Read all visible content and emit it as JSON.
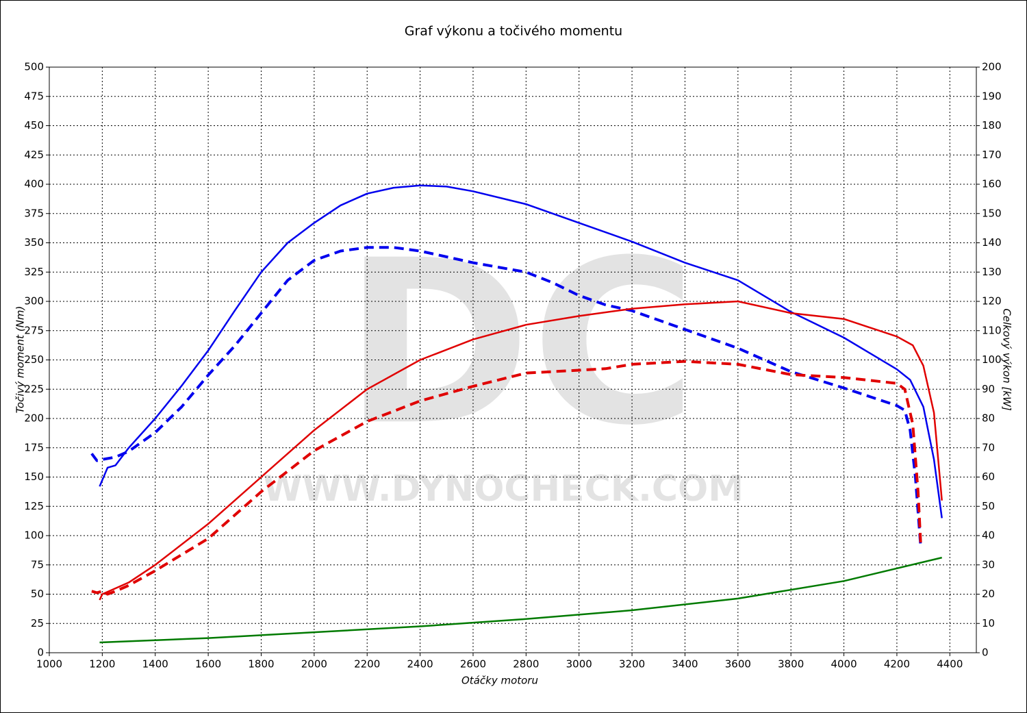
{
  "chart_data": {
    "type": "line",
    "title": "Graf výkonu a točivého momentu",
    "x_label": "Otáčky motoru",
    "y_label": "Točivý moment (Nm)",
    "y2_label": "Celkový výkon [kW]",
    "watermark": [
      "DC",
      "WWW.DYNOCHECK.COM"
    ],
    "xlim": [
      1000,
      4500
    ],
    "xticks": [
      1000,
      1200,
      1400,
      1600,
      1800,
      2000,
      2200,
      2400,
      2600,
      2800,
      3000,
      3200,
      3400,
      3600,
      3800,
      4000,
      4200,
      4400
    ],
    "ylim": [
      0,
      500
    ],
    "yticks": [
      0,
      25,
      50,
      75,
      100,
      125,
      150,
      175,
      200,
      225,
      250,
      275,
      300,
      325,
      350,
      375,
      400,
      425,
      450,
      475,
      500
    ],
    "y2lim": [
      0,
      200
    ],
    "y2ticks": [
      0,
      10,
      20,
      30,
      40,
      50,
      60,
      70,
      80,
      90,
      100,
      110,
      120,
      130,
      140,
      150,
      160,
      170,
      180,
      190,
      200
    ],
    "grid": true,
    "series": [
      {
        "color": "#0000ee",
        "dashed": false,
        "axis": "y",
        "x": [
          1190,
          1220,
          1250,
          1300,
          1400,
          1500,
          1600,
          1700,
          1800,
          1900,
          2000,
          2100,
          2200,
          2300,
          2400,
          2500,
          2600,
          2800,
          3000,
          3200,
          3400,
          3600,
          3800,
          4000,
          4200,
          4250,
          4300,
          4340,
          4370
        ],
        "values": [
          142,
          158,
          160,
          175,
          200,
          228,
          258,
          292,
          325,
          350,
          367,
          382,
          392,
          397,
          399,
          398,
          394,
          383,
          367,
          351,
          333,
          318,
          291,
          269,
          242,
          233,
          210,
          165,
          115
        ]
      },
      {
        "color": "#0000ee",
        "dashed": true,
        "axis": "y",
        "x": [
          1160,
          1180,
          1200,
          1250,
          1300,
          1400,
          1500,
          1600,
          1700,
          1800,
          1900,
          2000,
          2100,
          2200,
          2300,
          2400,
          2500,
          2600,
          2800,
          2900,
          3000,
          3100,
          3200,
          3400,
          3600,
          3800,
          4000,
          4200,
          4230,
          4250,
          4270,
          4290
        ],
        "values": [
          170,
          164,
          165,
          167,
          172,
          188,
          210,
          237,
          262,
          290,
          318,
          335,
          343,
          346,
          346,
          343,
          338,
          333,
          325,
          316,
          305,
          297,
          292,
          276,
          260,
          240,
          226,
          211,
          207,
          190,
          150,
          90
        ]
      },
      {
        "color": "#e00000",
        "dashed": false,
        "axis": "y2",
        "x": [
          1190,
          1200,
          1300,
          1400,
          1600,
          1800,
          2000,
          2200,
          2400,
          2600,
          2800,
          3000,
          3200,
          3400,
          3600,
          3800,
          4000,
          4200,
          4260,
          4300,
          4340,
          4370
        ],
        "values": [
          18,
          20,
          24,
          30,
          44,
          60,
          76,
          90,
          100,
          107,
          112,
          115,
          117.5,
          119,
          120,
          116,
          114,
          108,
          105,
          98,
          82,
          52
        ]
      },
      {
        "color": "#e00000",
        "dashed": true,
        "axis": "y2",
        "x": [
          1160,
          1180,
          1200,
          1220,
          1250,
          1300,
          1400,
          1600,
          1800,
          2000,
          2200,
          2400,
          2600,
          2800,
          3000,
          3100,
          3200,
          3400,
          3600,
          3800,
          4000,
          4200,
          4230,
          4260,
          4280,
          4290
        ],
        "values": [
          21,
          20.5,
          21,
          20,
          21,
          23,
          28,
          39,
          55,
          69,
          79,
          86,
          91,
          95.5,
          96.5,
          97,
          98.5,
          99.5,
          98.5,
          95,
          94,
          92,
          90,
          78,
          55,
          37
        ]
      },
      {
        "color": "#007a00",
        "dashed": false,
        "axis": "y2",
        "x": [
          1190,
          1600,
          2000,
          2400,
          2800,
          3200,
          3600,
          4000,
          4370
        ],
        "values": [
          3.5,
          5,
          7,
          9,
          11.5,
          14.5,
          18.5,
          24.5,
          32.5
        ]
      }
    ]
  }
}
